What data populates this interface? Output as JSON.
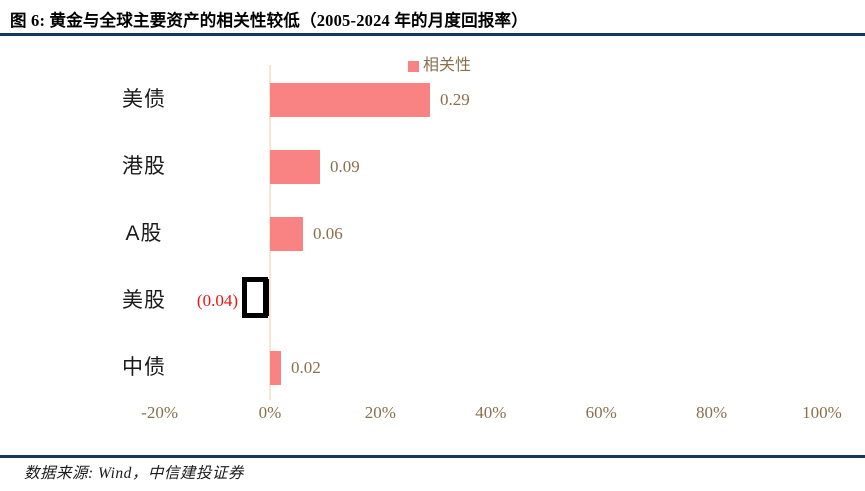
{
  "figure": {
    "title": "图 6: 黄金与全球主要资产的相关性较低（2005-2024 年的月度回报率）",
    "source": "数据来源: Wind，中信建投证券"
  },
  "chart_data": {
    "type": "bar",
    "orientation": "horizontal",
    "title": "黄金与全球主要资产的相关性（2005-2024 年的月度回报率）",
    "legend": [
      {
        "label": "相关性",
        "color": "#F98282"
      }
    ],
    "legend_position": "top",
    "categories": [
      "美债",
      "港股",
      "A股",
      "美股",
      "中债"
    ],
    "series": [
      {
        "name": "相关性",
        "values": [
          0.29,
          0.09,
          0.06,
          -0.04,
          0.02
        ]
      }
    ],
    "value_labels": [
      "0.29",
      "0.09",
      "0.06",
      "(0.04)",
      "0.02"
    ],
    "x_ticks": {
      "labels": [
        "-20%",
        "0%",
        "20%",
        "40%",
        "60%",
        "80%",
        "100%"
      ],
      "values": [
        -0.2,
        0,
        0.2,
        0.4,
        0.6,
        0.8,
        1.0
      ]
    },
    "xlim": [
      -0.2,
      1.0
    ],
    "grid": false,
    "notes": "美股 negative bar rendered as hollow black missing-glyph box in source image"
  },
  "colors": {
    "bar_fill": "#F98282",
    "title_rule": "#17375E",
    "footer_rule": "#17375E",
    "tick_label": "#8B6F4B",
    "value_label": "#8B6F4B",
    "negative_value_label": "#EE1111",
    "axis_line": "#FBE5D1",
    "category_label": "#1A1A1A",
    "legend_label": "#8B6F4B"
  }
}
